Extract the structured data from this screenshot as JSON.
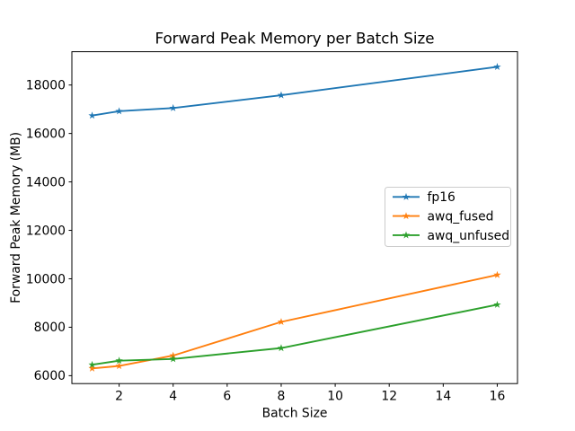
{
  "chart_data": {
    "type": "line",
    "title": "Forward Peak Memory per Batch Size",
    "xlabel": "Batch Size",
    "ylabel": "Forward Peak Memory (MB)",
    "x": [
      1,
      2,
      4,
      8,
      16
    ],
    "series": [
      {
        "name": "fp16",
        "color": "#1f77b4",
        "values": [
          16740,
          16920,
          17050,
          17580,
          18750
        ]
      },
      {
        "name": "awq_fused",
        "color": "#ff7f0e",
        "values": [
          6300,
          6400,
          6830,
          8220,
          10160
        ]
      },
      {
        "name": "awq_unfused",
        "color": "#2ca02c",
        "values": [
          6450,
          6620,
          6690,
          7140,
          8930
        ]
      }
    ],
    "xticks": [
      2,
      4,
      6,
      8,
      10,
      12,
      14,
      16
    ],
    "yticks": [
      6000,
      8000,
      10000,
      12000,
      14000,
      16000,
      18000
    ],
    "xlim": [
      0.25,
      16.75
    ],
    "ylim": [
      5673,
      19375
    ],
    "marker": "star",
    "grid": false,
    "legend_position": "center-right",
    "colors": {
      "background": "#ffffff",
      "spine": "#000000",
      "legend_border": "#cccccc",
      "legend_background": "#ffffff"
    }
  }
}
